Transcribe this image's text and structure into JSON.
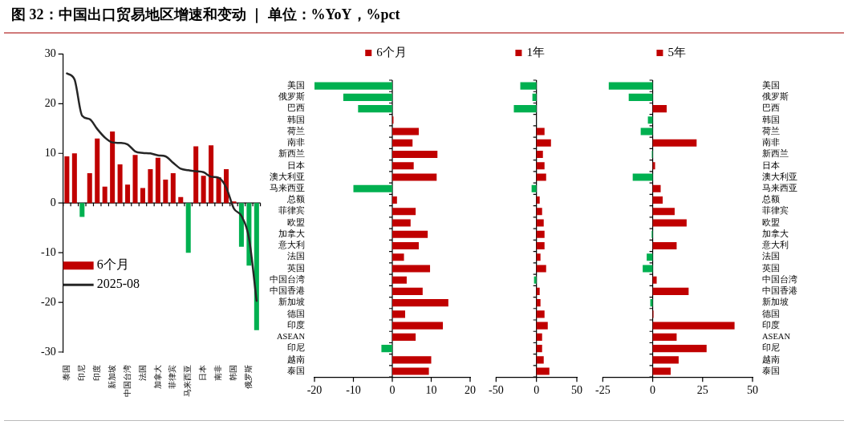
{
  "chart_data": [
    {
      "type": "bar",
      "title": "图 32：中国出口贸易地区增速和变动 ｜ 单位：%YoY，%pct",
      "categories": [
        "泰国",
        null,
        "印尼",
        null,
        "印度",
        null,
        "新加坡",
        null,
        "中国台湾",
        null,
        "法国",
        null,
        "加拿大",
        null,
        "菲律宾",
        null,
        "马来西亚",
        null,
        "日本",
        null,
        "南非",
        null,
        "韩国",
        null,
        "俄罗斯",
        null
      ],
      "series": [
        {
          "name": "6个月",
          "type": "bar",
          "color": "#c00000",
          "colors": [
            "#c00000",
            "#c00000",
            "#00b050",
            "#c00000",
            "#c00000",
            "#c00000",
            "#c00000",
            "#c00000",
            "#c00000",
            "#c00000",
            "#c00000",
            "#c00000",
            "#c00000",
            "#c00000",
            "#c00000",
            "#c00000",
            "#00b050",
            "#c00000",
            "#c00000",
            "#c00000",
            "#c00000",
            "#c00000",
            "#c00000",
            "#00b050",
            "#00b050",
            "#00b050"
          ],
          "values": [
            9.4,
            10.0,
            -2.8,
            6.0,
            13.0,
            3.3,
            14.4,
            7.8,
            3.7,
            9.7,
            3.0,
            6.8,
            9.1,
            4.7,
            6.0,
            1.2,
            -10.0,
            11.4,
            5.5,
            11.6,
            5.2,
            6.8,
            0.3,
            -8.8,
            -12.6,
            -25.6
          ]
        },
        {
          "name": "2025-08",
          "type": "line",
          "color": "#262626",
          "marker": "none",
          "line_style": "solid",
          "values": [
            26.1,
            24.9,
            17.6,
            16.9,
            14.9,
            13.2,
            12.2,
            12.1,
            11.8,
            10.4,
            10.1,
            10.0,
            9.6,
            9.4,
            8.1,
            6.9,
            6.6,
            6.4,
            6.2,
            5.3,
            5.1,
            3.1,
            -1.1,
            -2.6,
            -7.1,
            -19.7
          ]
        }
      ],
      "ylim": [
        -30,
        30
      ],
      "yticks": [
        -30,
        -20,
        -10,
        0,
        10,
        20,
        30
      ],
      "legend": "left"
    },
    {
      "type": "bar",
      "orientation": "horizontal",
      "categories": [
        "美国",
        "俄罗斯",
        "巴西",
        "韩国",
        "荷兰",
        "南非",
        "新西兰",
        "日本",
        "澳大利亚",
        "马来西亚",
        "总额",
        "菲律宾",
        "欧盟",
        "加拿大",
        "意大利",
        "法国",
        "英国",
        "中国台湾",
        "中国香港",
        "新加坡",
        "德国",
        "印度",
        "ASEAN",
        "印尼",
        "越南",
        "泰国"
      ],
      "series": [
        {
          "name": "6个月",
          "color": "#c00000",
          "colors": [
            "#00b050",
            "#00b050",
            "#00b050",
            "#c00000",
            "#c00000",
            "#c00000",
            "#c00000",
            "#c00000",
            "#c00000",
            "#00b050",
            "#c00000",
            "#c00000",
            "#c00000",
            "#c00000",
            "#c00000",
            "#c00000",
            "#c00000",
            "#c00000",
            "#c00000",
            "#c00000",
            "#c00000",
            "#c00000",
            "#c00000",
            "#00b050",
            "#c00000",
            "#c00000"
          ],
          "values": [
            -20,
            -12.6,
            -8.8,
            0.3,
            6.8,
            5.2,
            11.6,
            5.5,
            11.4,
            -10.0,
            1.2,
            6.0,
            4.7,
            9.1,
            6.8,
            3.0,
            9.7,
            3.7,
            7.8,
            14.4,
            3.3,
            13.0,
            6.0,
            -2.8,
            10.0,
            9.4
          ]
        }
      ],
      "xlim": [
        -20,
        20
      ],
      "xticks": [
        -20,
        -10,
        0,
        10,
        20
      ],
      "legend": "top"
    },
    {
      "type": "bar",
      "orientation": "horizontal",
      "categories": [
        null,
        null,
        null,
        null,
        null,
        null,
        null,
        null,
        null,
        null,
        null,
        null,
        null,
        null,
        null,
        null,
        null,
        null,
        null,
        null,
        null,
        null,
        null,
        null,
        null,
        null
      ],
      "series": [
        {
          "name": "1年",
          "color": "#c00000",
          "colors": [
            "#00b050",
            "#00b050",
            "#00b050",
            "#c00000",
            "#c00000",
            "#c00000",
            "#c00000",
            "#c00000",
            "#c00000",
            "#00b050",
            "#c00000",
            "#c00000",
            "#c00000",
            "#c00000",
            "#c00000",
            "#c00000",
            "#c00000",
            "#00b050",
            "#c00000",
            "#c00000",
            "#c00000",
            "#c00000",
            "#c00000",
            "#c00000",
            "#c00000",
            "#c00000"
          ],
          "values": [
            -20,
            -5,
            -28,
            0,
            10,
            18,
            8,
            10,
            12,
            -6,
            4,
            7,
            9,
            10,
            10,
            5,
            12,
            -3,
            4,
            5,
            10,
            14,
            7,
            7,
            9,
            16
          ]
        }
      ],
      "xlim": [
        -50,
        50
      ],
      "xticks": [
        -50,
        0,
        50
      ],
      "legend": "top",
      "tick_labels": "x"
    },
    {
      "type": "bar",
      "orientation": "horizontal",
      "categories": [
        "美国",
        "俄罗斯",
        "巴西",
        "韩国",
        "荷兰",
        "南非",
        "新西兰",
        "日本",
        "澳大利亚",
        "马来西亚",
        "总额",
        "菲律宾",
        "欧盟",
        "加拿大",
        "意大利",
        "法国",
        "英国",
        "中国台湾",
        "中国香港",
        "新加坡",
        "德国",
        "印度",
        "ASEAN",
        "印尼",
        "越南",
        "泰国"
      ],
      "series": [
        {
          "name": "5年",
          "color": "#c00000",
          "colors": [
            "#00b050",
            "#00b050",
            "#c00000",
            "#00b050",
            "#00b050",
            "#c00000",
            "#00b050",
            "#c00000",
            "#00b050",
            "#c00000",
            "#c00000",
            "#c00000",
            "#c00000",
            "#00b050",
            "#c00000",
            "#00b050",
            "#00b050",
            "#c00000",
            "#c00000",
            "#00b050",
            "#c00000",
            "#c00000",
            "#c00000",
            "#c00000",
            "#c00000",
            "#c00000"
          ],
          "values": [
            -22,
            -12,
            7,
            -2.4,
            -6,
            22,
            -0.4,
            1.2,
            -10,
            4,
            5,
            11,
            17,
            -0.5,
            12,
            -3,
            -5,
            2,
            18,
            -1.2,
            0.4,
            41,
            12,
            27,
            13,
            9
          ]
        }
      ],
      "xlim": [
        -25,
        50
      ],
      "xticks": [
        -25,
        0,
        25,
        50
      ],
      "legend": "top"
    }
  ]
}
